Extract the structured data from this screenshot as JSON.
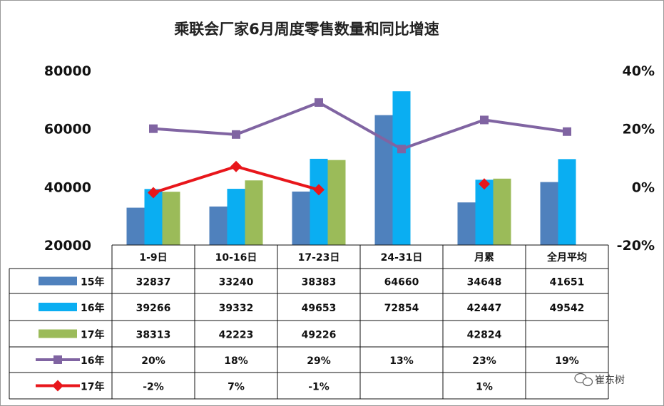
{
  "chart_data": {
    "type": "bar",
    "title": "乘联会厂家6月周度零售数量和同比增速",
    "categories": [
      "1-9日",
      "10-16日",
      "17-23日",
      "24-31日",
      "月累",
      "全月平均"
    ],
    "y_left": {
      "ylim": [
        20000,
        80000
      ],
      "ticks": [
        "20000",
        "40000",
        "60000",
        "80000"
      ]
    },
    "y_right": {
      "ylim": [
        -20,
        40
      ],
      "ticks": [
        "-20%",
        "0%",
        "20%",
        "40%"
      ]
    },
    "bar_series": [
      {
        "name": "15年",
        "color": "#4f81bd",
        "values": [
          32837,
          33240,
          38383,
          64660,
          34648,
          41651
        ],
        "labels": [
          "32837",
          "33240",
          "38383",
          "64660",
          "34648",
          "41651"
        ]
      },
      {
        "name": "16年",
        "color": "#0aaef2",
        "values": [
          39266,
          39332,
          49653,
          72854,
          42447,
          49542
        ],
        "labels": [
          "39266",
          "39332",
          "49653",
          "72854",
          "42447",
          "49542"
        ]
      },
      {
        "name": "17年",
        "color": "#9bbb59",
        "values": [
          38313,
          42223,
          49226,
          null,
          42824,
          null
        ],
        "labels": [
          "38313",
          "42223",
          "49226",
          "",
          "42824",
          ""
        ]
      }
    ],
    "line_series": [
      {
        "name": "16年",
        "color": "#8064a2",
        "marker": "square",
        "values": [
          20,
          18,
          29,
          13,
          23,
          19
        ],
        "labels": [
          "20%",
          "18%",
          "29%",
          "13%",
          "23%",
          "19%"
        ]
      },
      {
        "name": "17年",
        "color": "#e8161b",
        "marker": "diamond",
        "values": [
          -2,
          7,
          -1,
          null,
          1,
          null
        ],
        "labels": [
          "-2%",
          "7%",
          "-1%",
          "",
          "1%",
          ""
        ]
      }
    ]
  },
  "watermark": {
    "text": "崔东树"
  }
}
